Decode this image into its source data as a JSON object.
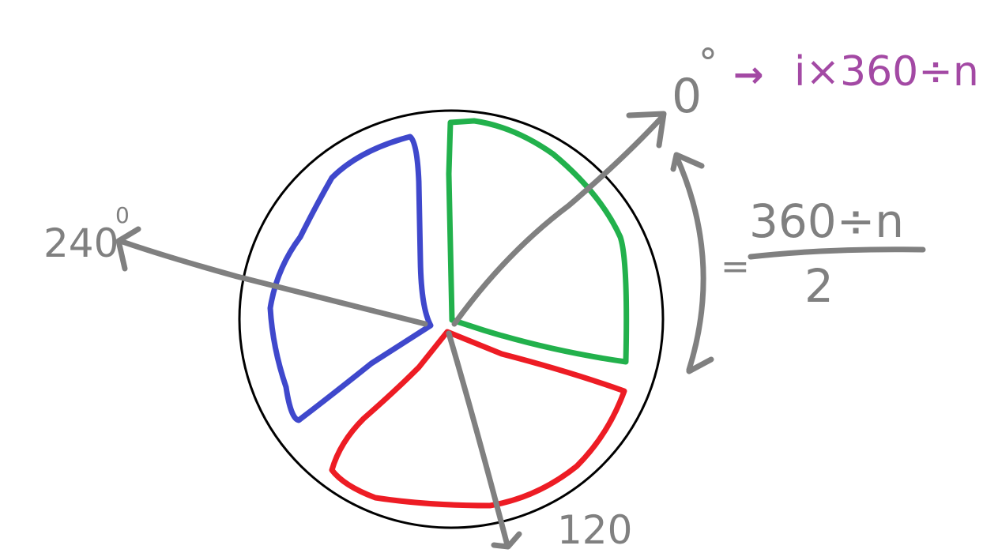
{
  "colors": {
    "circle": "#000000",
    "wedge_green": "#22b14c",
    "wedge_red": "#ed1c24",
    "wedge_blue": "#3f48cc",
    "arrows": "#808080",
    "formula": "#a349a4"
  },
  "labels": {
    "angle_zero": "0",
    "angle_zero_degree": "°",
    "angle_240": "240",
    "angle_240_degree": "0",
    "angle_120": "120",
    "formula_arrow": "→",
    "formula_text": "i×360÷n",
    "half_equals": "=",
    "half_numerator": "360÷n",
    "half_denominator": "2"
  }
}
